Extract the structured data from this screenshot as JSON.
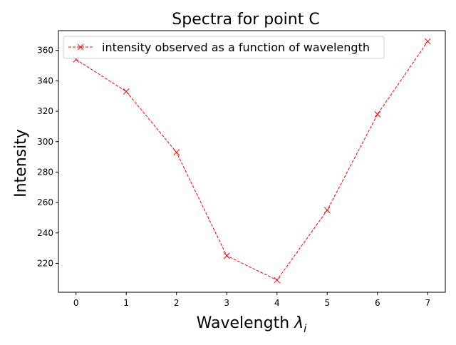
{
  "chart_data": {
    "type": "line",
    "title": "Spectra for point C",
    "xlabel_main": "Wavelength ",
    "xlabel_symbol": "λ",
    "xlabel_subscript": "i",
    "ylabel": "Intensity",
    "x": [
      0,
      1,
      2,
      3,
      4,
      5,
      6,
      7
    ],
    "xlim": [
      -0.35,
      7.35
    ],
    "ylim": [
      201,
      373
    ],
    "xticks": [
      0,
      1,
      2,
      3,
      4,
      5,
      6,
      7
    ],
    "yticks": [
      220,
      240,
      260,
      280,
      300,
      320,
      340,
      360
    ],
    "grid": false,
    "legend_position": "upper-left",
    "series": [
      {
        "name": "intensity observed as a function of wavelength",
        "color": "#ff0000",
        "line_style": "dashed",
        "marker": "x",
        "values": [
          354,
          333,
          293,
          225,
          209,
          255,
          318,
          366
        ]
      }
    ]
  }
}
